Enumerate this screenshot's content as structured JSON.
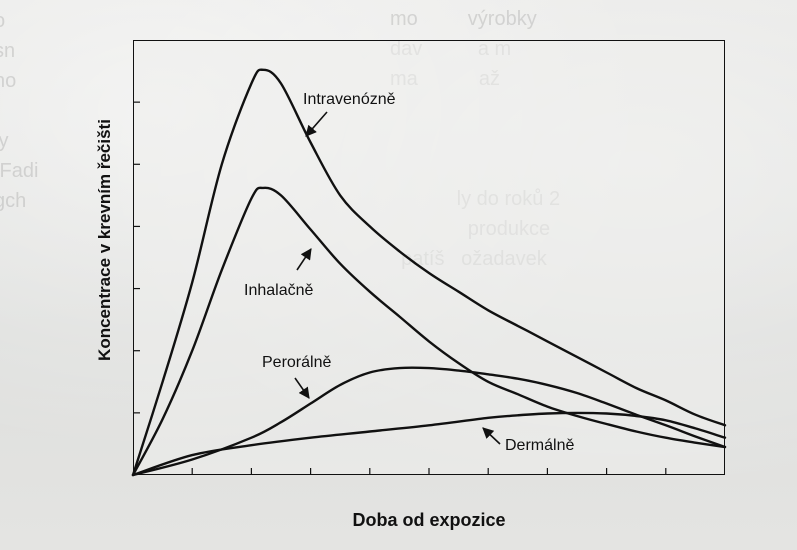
{
  "chart_data": {
    "type": "line",
    "xlabel": "Doba od expozice",
    "ylabel": "Koncentrace v krevním řečišti",
    "xlim": [
      0,
      10
    ],
    "ylim": [
      0,
      7
    ],
    "grid": false,
    "legend": "none",
    "series": [
      {
        "name": "Intravenózně",
        "x": [
          0,
          0.5,
          1,
          1.5,
          2,
          2.2,
          2.5,
          3,
          3.5,
          4,
          4.5,
          5,
          5.5,
          6,
          6.5,
          7,
          7.5,
          8,
          8.5,
          9,
          9.5,
          10
        ],
        "values": [
          0,
          1.5,
          3.1,
          5.0,
          6.3,
          6.52,
          6.3,
          5.35,
          4.5,
          4.0,
          3.6,
          3.25,
          2.95,
          2.65,
          2.4,
          2.15,
          1.9,
          1.65,
          1.4,
          1.2,
          0.97,
          0.8
        ]
      },
      {
        "name": "Inhalačně",
        "x": [
          0,
          0.5,
          1,
          1.5,
          2,
          2.2,
          2.5,
          3,
          3.5,
          4,
          4.5,
          5,
          5.5,
          6,
          6.5,
          7,
          7.5,
          8,
          8.5,
          9,
          9.5,
          10
        ],
        "values": [
          0,
          0.9,
          2.0,
          3.3,
          4.45,
          4.62,
          4.5,
          3.95,
          3.4,
          2.95,
          2.55,
          2.15,
          1.8,
          1.5,
          1.3,
          1.1,
          0.95,
          0.82,
          0.7,
          0.6,
          0.52,
          0.45
        ]
      },
      {
        "name": "Perorálně",
        "x": [
          0,
          1,
          2,
          2.5,
          3,
          3.5,
          4,
          4.5,
          5,
          5.5,
          6,
          6.5,
          7,
          7.5,
          8,
          8.5,
          9,
          9.5,
          10
        ],
        "values": [
          0,
          0.25,
          0.6,
          0.85,
          1.15,
          1.45,
          1.65,
          1.72,
          1.72,
          1.68,
          1.62,
          1.55,
          1.45,
          1.32,
          1.15,
          0.97,
          0.8,
          0.62,
          0.45
        ]
      },
      {
        "name": "Dermálně",
        "x": [
          0,
          1,
          2,
          3,
          4,
          5,
          6,
          6.5,
          7,
          7.5,
          8,
          8.5,
          9,
          9.5,
          10
        ],
        "values": [
          0,
          0.32,
          0.48,
          0.6,
          0.7,
          0.8,
          0.92,
          0.96,
          0.99,
          1.0,
          0.99,
          0.95,
          0.88,
          0.75,
          0.6
        ]
      }
    ],
    "annotations": [
      {
        "text": "Intravenózně",
        "series": "Intravenózně"
      },
      {
        "text": "Inhalačně",
        "series": "Inhalačně"
      },
      {
        "text": "Perorálně",
        "series": "Perorálně"
      },
      {
        "text": "Dermálně",
        "series": "Dermálně"
      }
    ]
  }
}
